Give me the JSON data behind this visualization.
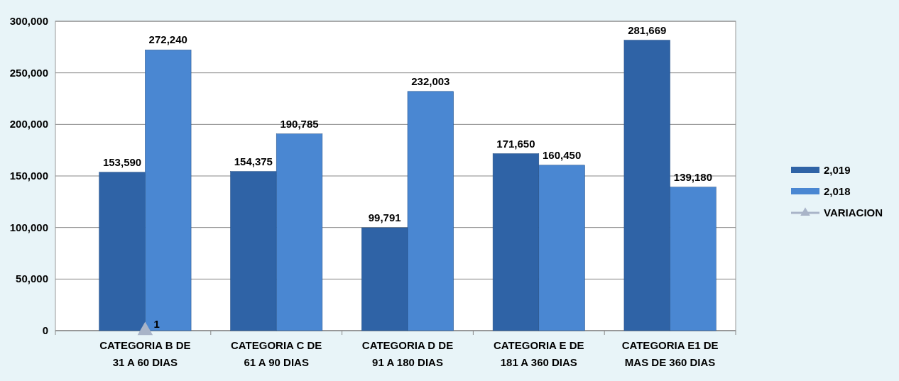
{
  "chart_data": {
    "type": "bar",
    "categories": [
      "CATEGORIA B DE\n31 A 60 DIAS",
      "CATEGORIA C DE\n61 A 90 DIAS",
      "CATEGORIA D DE\n91 A 180 DIAS",
      "CATEGORIA E DE\n181 A 360 DIAS",
      "CATEGORIA E1 DE\nMAS DE 360 DIAS"
    ],
    "series": [
      {
        "name": "2,019",
        "color": "#2f63a6",
        "values": [
          153590,
          154375,
          99791,
          171650,
          281669
        ],
        "value_labels": [
          "153,590",
          "154,375",
          "99,791",
          "171,650",
          "281,669"
        ]
      },
      {
        "name": "2,018",
        "color": "#4a87d2",
        "values": [
          272240,
          190785,
          232003,
          160450,
          139180
        ],
        "value_labels": [
          "272,240",
          "190,785",
          "232,003",
          "160,450",
          "139,180"
        ]
      },
      {
        "name": "VARIACION",
        "type": "line",
        "marker": "triangle",
        "color": "#a9b4c8",
        "values": [
          1,
          null,
          null,
          null,
          null
        ],
        "value_labels": [
          "1",
          null,
          null,
          null,
          null
        ]
      }
    ],
    "ylim": [
      0,
      300000
    ],
    "yticks": [
      {
        "value": 0,
        "label": "0"
      },
      {
        "value": 50000,
        "label": "50,000"
      },
      {
        "value": 100000,
        "label": "100,000"
      },
      {
        "value": 150000,
        "label": "150,000"
      },
      {
        "value": 200000,
        "label": "200,000"
      },
      {
        "value": 250000,
        "label": "250,000"
      },
      {
        "value": 300000,
        "label": "300,000"
      }
    ],
    "grid": "y",
    "legend": "right"
  }
}
